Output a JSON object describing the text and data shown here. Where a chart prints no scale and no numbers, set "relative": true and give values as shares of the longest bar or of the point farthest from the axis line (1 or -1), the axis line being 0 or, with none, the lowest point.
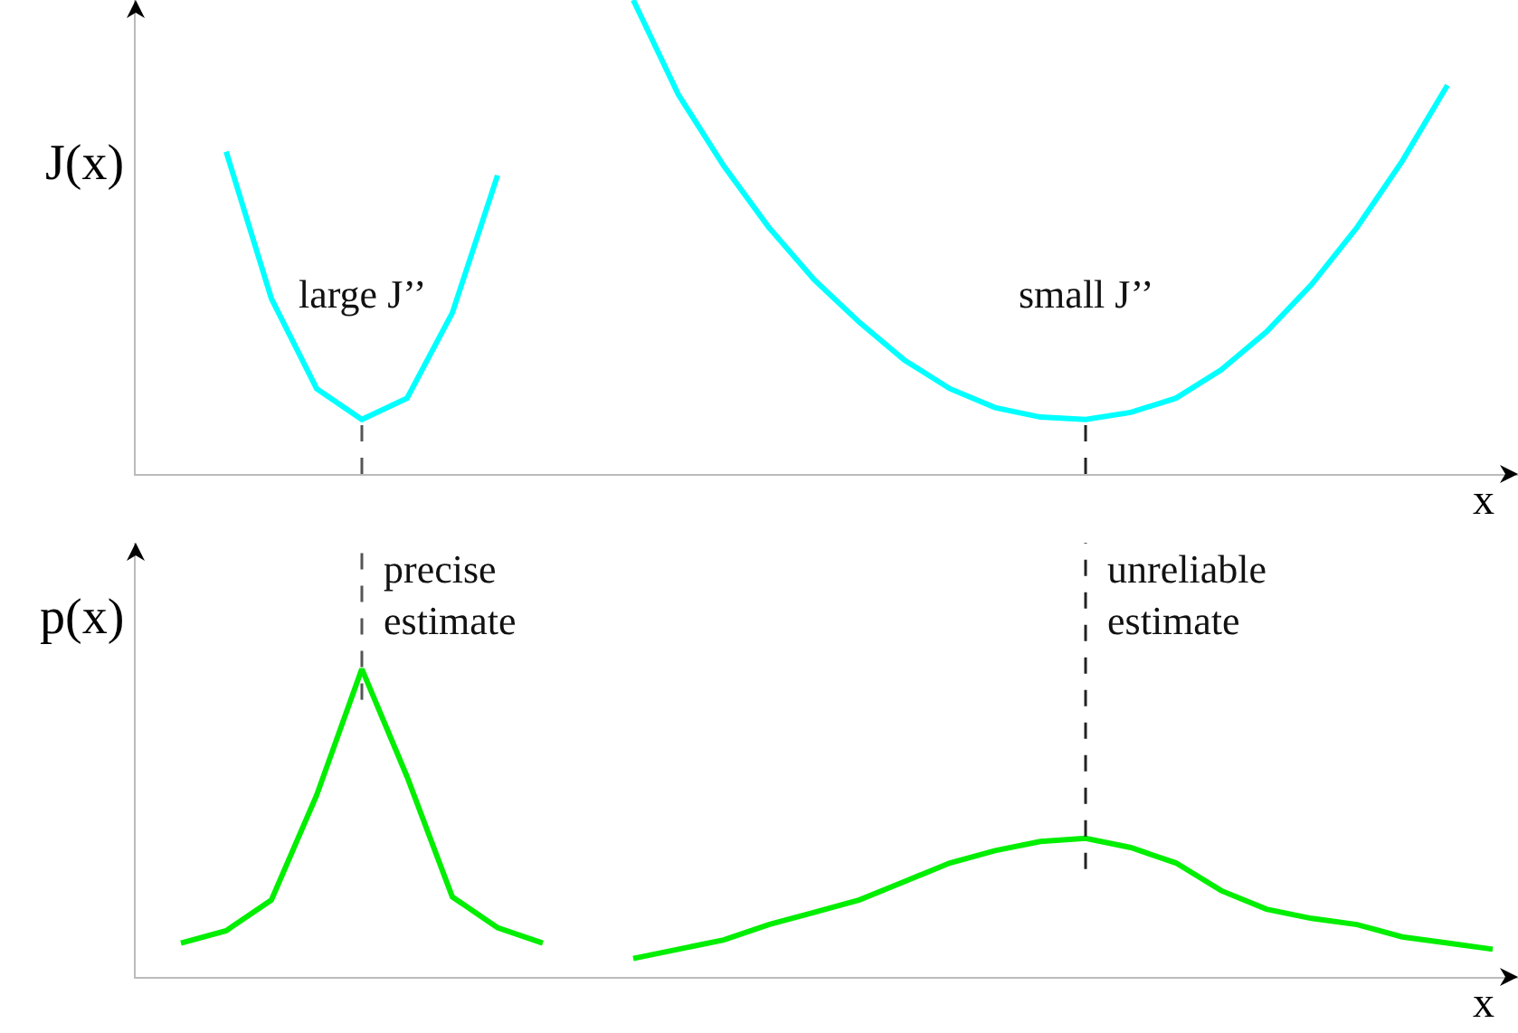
{
  "chart_data": [
    {
      "type": "line",
      "relative": true,
      "ylabel": "J(x)",
      "xlabel": "x",
      "categories": [
        null,
        null,
        null,
        null,
        null,
        null,
        null,
        null,
        null,
        null,
        null,
        null,
        null,
        null,
        null,
        null,
        null,
        null,
        null,
        null,
        null,
        null,
        null,
        null,
        null,
        null,
        null,
        null,
        null,
        null
      ],
      "series": [
        {
          "color": "#00ffff",
          "values": [
            null,
            0.68,
            0.37,
            0.18,
            0.115,
            0.16,
            0.34,
            0.63,
            null,
            null,
            null,
            null,
            null,
            null,
            null,
            null,
            null,
            null,
            null,
            null,
            null,
            null,
            null,
            null,
            null,
            null,
            null,
            null,
            null,
            null
          ]
        },
        {
          "color": "#00ffff",
          "values": [
            null,
            null,
            null,
            null,
            null,
            null,
            null,
            null,
            null,
            null,
            1.0,
            0.8,
            0.65,
            0.52,
            0.41,
            0.32,
            0.24,
            0.18,
            0.14,
            0.12,
            0.115,
            0.13,
            0.16,
            0.22,
            0.3,
            0.4,
            0.52,
            0.66,
            0.82,
            null
          ]
        }
      ],
      "annotations": [
        "large J’’",
        "small J’’"
      ],
      "grid": false,
      "marker": "none"
    },
    {
      "type": "line",
      "relative": true,
      "ylabel": "p(x)",
      "xlabel": "x",
      "categories": [
        null,
        null,
        null,
        null,
        null,
        null,
        null,
        null,
        null,
        null,
        null,
        null,
        null,
        null,
        null,
        null,
        null,
        null,
        null,
        null,
        null,
        null,
        null,
        null,
        null,
        null,
        null,
        null,
        null,
        null
      ],
      "series": [
        {
          "color": "#00ee00",
          "values": [
            0.11,
            0.15,
            0.25,
            0.59,
            1.0,
            0.65,
            0.26,
            0.16,
            0.11,
            null,
            null,
            null,
            null,
            null,
            null,
            null,
            null,
            null,
            null,
            null,
            null,
            null,
            null,
            null,
            null,
            null,
            null,
            null,
            null,
            null
          ]
        },
        {
          "color": "#00ee00",
          "values": [
            null,
            null,
            null,
            null,
            null,
            null,
            null,
            null,
            null,
            null,
            0.06,
            0.09,
            0.12,
            0.17,
            0.21,
            0.25,
            0.31,
            0.37,
            0.41,
            0.44,
            0.45,
            0.42,
            0.37,
            0.28,
            0.22,
            0.19,
            0.17,
            0.13,
            0.11,
            0.09
          ]
        }
      ],
      "annotations": [
        "precise\nestimate",
        "unreliable\nestimate"
      ],
      "grid": false,
      "marker": "none"
    }
  ]
}
